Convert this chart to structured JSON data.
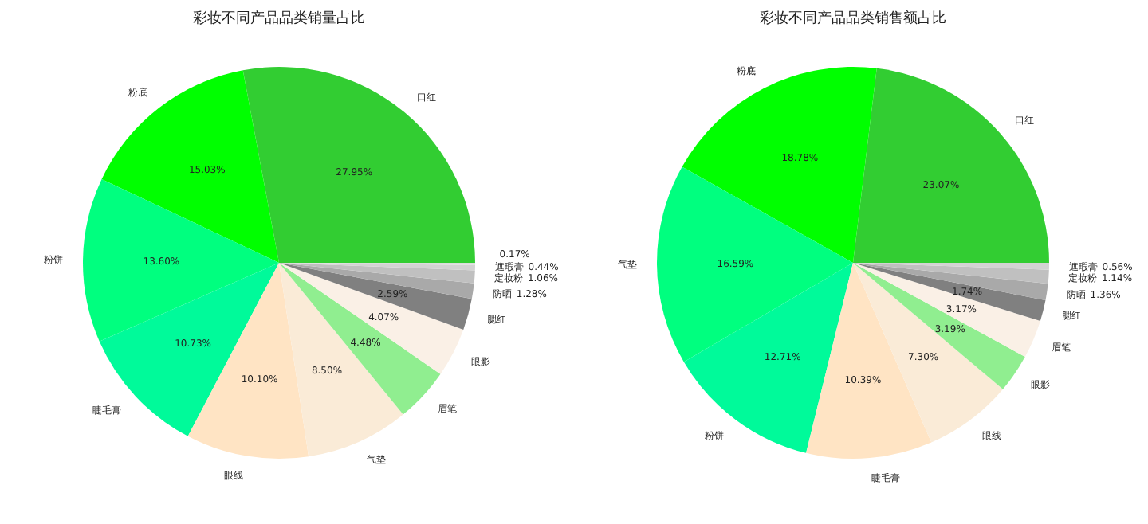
{
  "chart_data": [
    {
      "type": "pie",
      "title": "彩妆不同产品品类销量占比",
      "categories": [
        "口红",
        "粉底",
        "粉饼",
        "睫毛膏",
        "眼线",
        "气垫",
        "眉笔",
        "眼影",
        "腮红",
        "防晒",
        "定妆粉",
        "遮瑕膏",
        null
      ],
      "values": [
        27.95,
        15.03,
        13.6,
        10.73,
        10.1,
        8.5,
        4.48,
        4.07,
        2.59,
        1.28,
        1.06,
        0.44,
        0.17
      ],
      "colors": [
        "#32cd32",
        "#00ff00",
        "#00ff7f",
        "#00fa9a",
        "#ffe4c4",
        "#faebd7",
        "#90ee90",
        "#faf0e6",
        "#808080",
        "#a9a9a9",
        "#c0c0c0",
        "#d3d3d3",
        "#dcdcdc"
      ],
      "data_labels": true,
      "value_labels": [
        "27.95%",
        "15.03%",
        "13.60%",
        "10.73%",
        "10.10%",
        "8.50%",
        "4.48%",
        "4.07%",
        "2.59%",
        "1.28%",
        "1.06%",
        "0.44%",
        "0.17%"
      ]
    },
    {
      "type": "pie",
      "title": "彩妆不同产品品类销售额占比",
      "categories": [
        "口红",
        "粉底",
        "气垫",
        "粉饼",
        "睫毛膏",
        "眼线",
        "眼影",
        "眉笔",
        "腮红",
        "防晒",
        "定妆粉",
        "遮瑕膏"
      ],
      "values": [
        23.07,
        18.78,
        16.59,
        12.71,
        10.39,
        7.3,
        3.19,
        3.17,
        1.74,
        1.36,
        1.14,
        0.56
      ],
      "colors": [
        "#32cd32",
        "#00ff00",
        "#00ff7f",
        "#00fa9a",
        "#ffe4c4",
        "#faebd7",
        "#90ee90",
        "#faf0e6",
        "#808080",
        "#a9a9a9",
        "#c0c0c0",
        "#d3d3d3"
      ],
      "data_labels": true,
      "value_labels": [
        "23.07%",
        "18.78%",
        "16.59%",
        "12.71%",
        "10.39%",
        "7.30%",
        "3.19%",
        "3.17%",
        "1.74%",
        "1.36%",
        "1.14%",
        "0.56%"
      ]
    }
  ]
}
